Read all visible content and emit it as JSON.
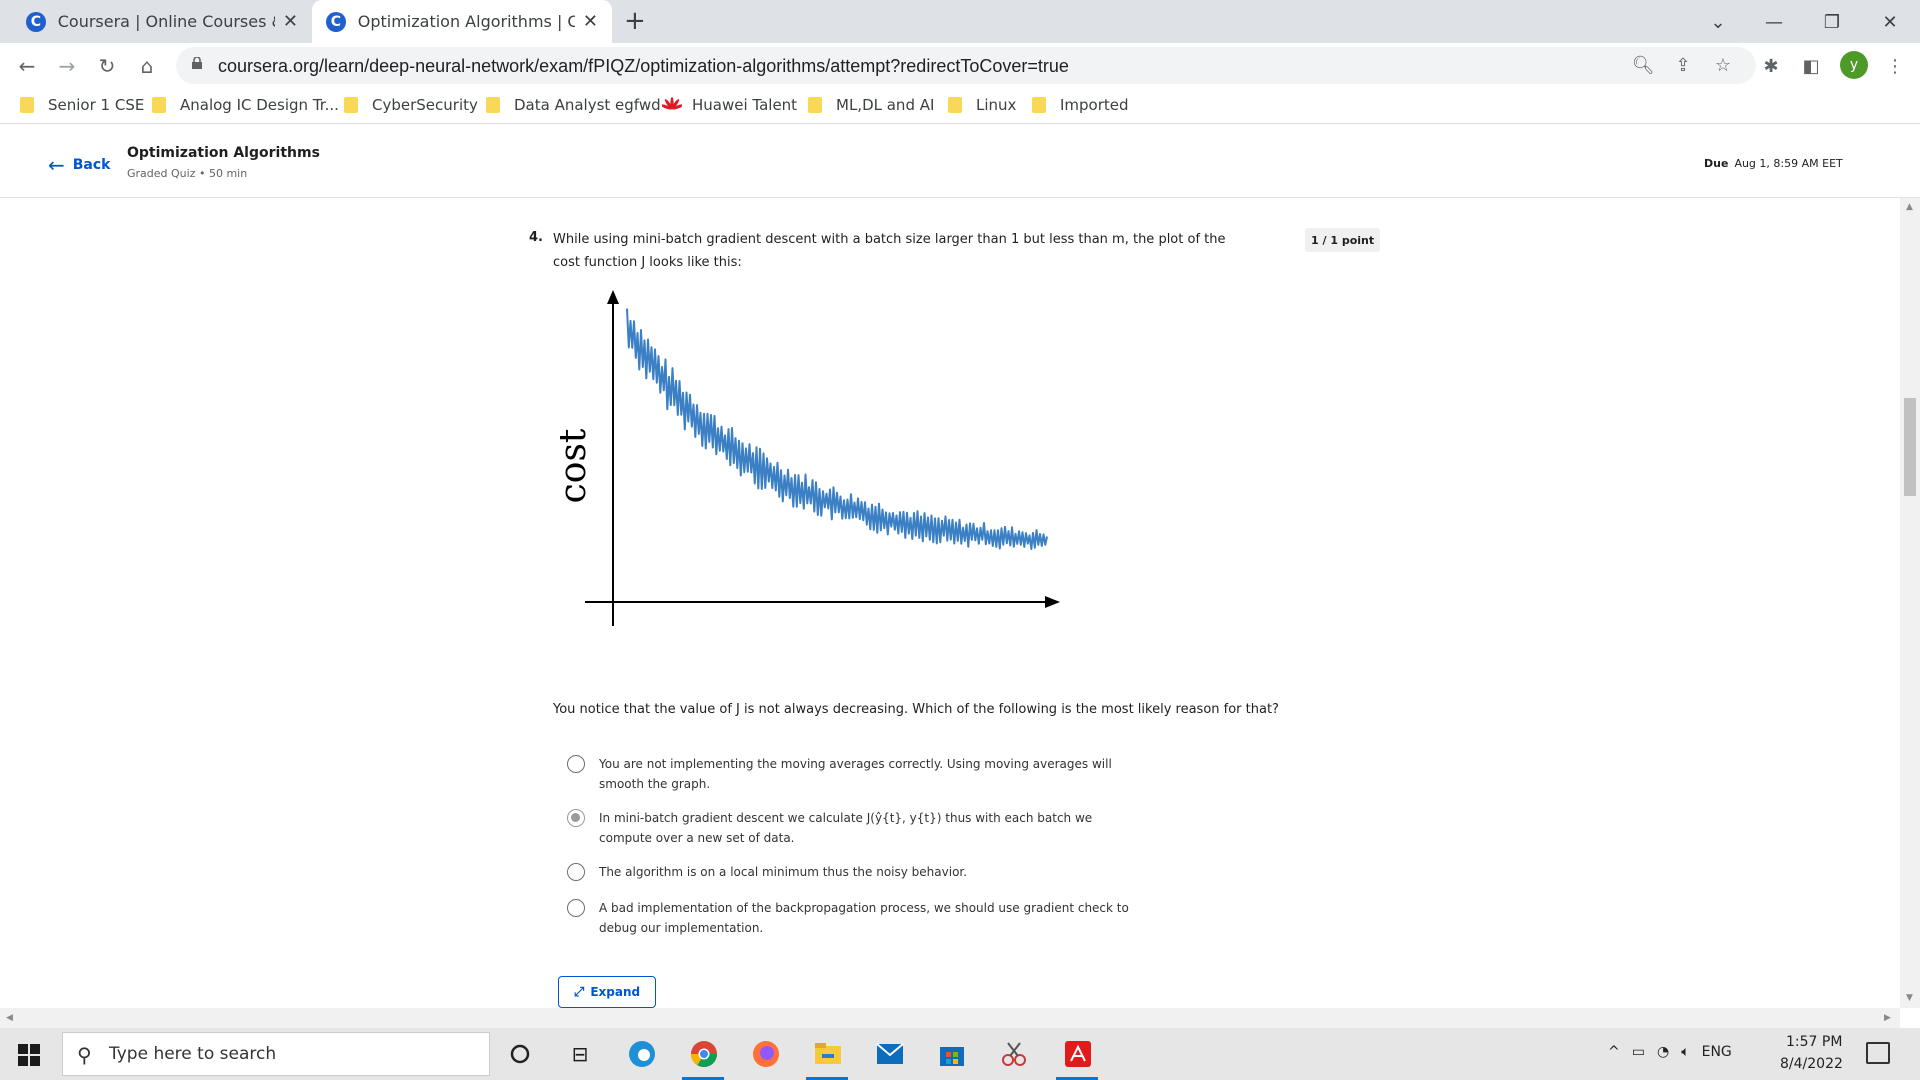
{
  "browser": {
    "tabs": [
      {
        "title": "Coursera | Online Courses & Credentials",
        "favicon": "C",
        "active": false
      },
      {
        "title": "Optimization Algorithms | Coursera",
        "favicon": "C",
        "active": true
      }
    ],
    "new_tab": "+",
    "url": "coursera.org/learn/deep-neural-network/exam/fPIQZ/optimization-algorithms/attempt?redirectToCover=true",
    "profile_initial": "y"
  },
  "bookmarks": [
    {
      "label": "Senior 1 CSE",
      "icon": "folder-icon"
    },
    {
      "label": "Analog IC Design Tr...",
      "icon": "folder-icon"
    },
    {
      "label": "CyberSecurity",
      "icon": "folder-icon"
    },
    {
      "label": "Data Analyst egfwd",
      "icon": "folder-icon"
    },
    {
      "label": "Huawei Talent",
      "icon": "huawei-icon"
    },
    {
      "label": "ML,DL and AI",
      "icon": "folder-icon"
    },
    {
      "label": "Linux",
      "icon": "folder-icon"
    },
    {
      "label": "Imported",
      "icon": "folder-icon"
    }
  ],
  "header": {
    "back": "Back",
    "title": "Optimization Algorithms",
    "subtitle": "Graded Quiz • 50 min",
    "due_label": "Due",
    "due_value": "Aug 1, 8:59 AM EET"
  },
  "question": {
    "number": "4.",
    "text": "While using mini-batch gradient descent with a batch size larger than 1 but less than m, the plot of the cost function J looks like this:",
    "points": "1 / 1 point",
    "plot_ylabel": "cost",
    "notice": "You notice that the value of J is not always decreasing. Which of the following is the most likely reason for that?",
    "options": [
      {
        "text": "You are not implementing the moving averages correctly. Using moving averages will smooth the graph.",
        "checked": false
      },
      {
        "text": "In mini-batch gradient descent we calculate J(ŷ{t}, y{t}) thus with each batch we compute over a new set of data.",
        "checked": true
      },
      {
        "text": "The algorithm is on a local minimum thus the noisy behavior.",
        "checked": false
      },
      {
        "text": "A bad implementation of the backpropagation process, we should use gradient check to debug our implementation.",
        "checked": false
      }
    ],
    "expand": "Expand"
  },
  "taskbar": {
    "search_placeholder": "Type here to search",
    "language": "ENG",
    "time": "1:57 PM",
    "date": "8/4/2022"
  },
  "colors": {
    "accent": "#0056d2",
    "plot_line": "#3b7fc4"
  }
}
